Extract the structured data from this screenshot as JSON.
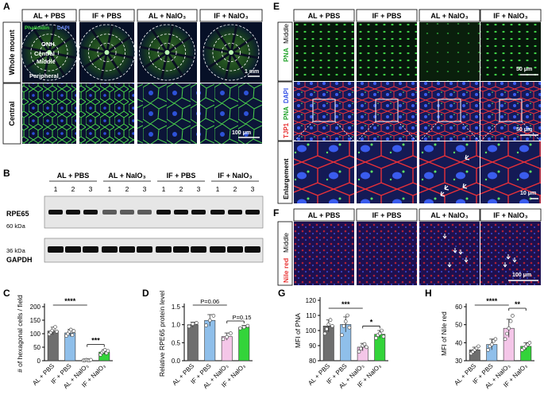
{
  "panels": {
    "A": {
      "letter": "A",
      "groups": [
        "AL + PBS",
        "IF + PBS",
        "AL + NaIO₃",
        "IF + NaIO₃"
      ],
      "row_labels": [
        "Whole mount",
        "Central"
      ],
      "stain_legend": {
        "phalloidin": "Phalloidin",
        "dapi": "DAPI"
      },
      "regions": [
        "ONH",
        "Central",
        "Middle",
        "Peripheral"
      ],
      "scalebar_top": "1 mm",
      "scalebar_bottom": "100 μm"
    },
    "B": {
      "letter": "B",
      "groups": [
        "AL + PBS",
        "AL + NaIO₃",
        "IF + PBS",
        "IF + NaIO₃"
      ],
      "lanes": [
        "1",
        "2",
        "3",
        "1",
        "2",
        "3",
        "1",
        "2",
        "3",
        "1",
        "2",
        "3"
      ],
      "bands": [
        "RPE65",
        "GAPDH"
      ],
      "markers": [
        "60 kDa",
        "36 kDa"
      ]
    },
    "C": {
      "letter": "C",
      "sig": [
        "****",
        "***"
      ]
    },
    "D": {
      "letter": "D",
      "sig": [
        "P=0.06",
        "P=0.15"
      ]
    },
    "E": {
      "letter": "E",
      "groups": [
        "AL + PBS",
        "IF + PBS",
        "AL + NaIO₃",
        "IF + NaIO₃"
      ],
      "row1_label": {
        "stain": "PNA",
        "region": "Middle"
      },
      "row2_label": {
        "a": "TJP1",
        "b": "PNA",
        "c": "DAPI"
      },
      "row3_label": "Enlargement",
      "scalebars": [
        "50 μm",
        "50 μm",
        "10 μm"
      ]
    },
    "F": {
      "letter": "F",
      "groups": [
        "AL + PBS",
        "IF + PBS",
        "AL + NaIO₃",
        "IF + NaIO₃"
      ],
      "row_label": {
        "stain": "Nile red",
        "region": "Middle"
      },
      "scalebar": "100 μm"
    },
    "G": {
      "letter": "G",
      "sig": [
        "***",
        "*"
      ]
    },
    "H": {
      "letter": "H",
      "sig": [
        "****",
        "**"
      ]
    }
  },
  "chart_data": [
    {
      "id": "C",
      "type": "bar",
      "categories": [
        "AL + PBS",
        "IF + PBS",
        "AL + NaIO₃",
        "IF + NaIO₃"
      ],
      "values": [
        110,
        103,
        2,
        32
      ],
      "errors": [
        14,
        13,
        1,
        9
      ],
      "points": [
        [
          98,
          105,
          112,
          120,
          125,
          108
        ],
        [
          92,
          100,
          108,
          115,
          95,
          110
        ],
        [
          1,
          2,
          3,
          2,
          1,
          3
        ],
        [
          22,
          30,
          35,
          40,
          28,
          36
        ]
      ],
      "colors": [
        "#6e6e6e",
        "#8fbfea",
        "#f4c6e8",
        "#33d43a"
      ],
      "ylabel": "# of hexagonal cells / field",
      "ylim": [
        0,
        200
      ],
      "yticks": [
        0,
        50,
        100,
        150,
        200
      ],
      "comparisons": [
        {
          "from": 0,
          "to": 2,
          "label": "****"
        },
        {
          "from": 2,
          "to": 3,
          "label": "***"
        }
      ]
    },
    {
      "id": "D",
      "type": "bar",
      "categories": [
        "AL + PBS",
        "IF + PBS",
        "AL + NaIO₃",
        "IF + NaIO₃"
      ],
      "values": [
        1.0,
        1.12,
        0.67,
        0.93
      ],
      "errors": [
        0.07,
        0.16,
        0.1,
        0.05
      ],
      "points": [
        [
          0.95,
          1.02,
          1.05
        ],
        [
          0.98,
          1.12,
          1.25
        ],
        [
          0.6,
          0.66,
          0.76
        ],
        [
          0.9,
          0.93,
          0.97
        ]
      ],
      "colors": [
        "#6e6e6e",
        "#8fbfea",
        "#f4c6e8",
        "#33d43a"
      ],
      "ylabel": "Relative RPE65 protein level",
      "ylim": [
        0,
        1.5
      ],
      "yticks": [
        0.0,
        0.5,
        1.0,
        1.5
      ],
      "comparisons": [
        {
          "from": 0,
          "to": 2,
          "label": "P=0.06"
        },
        {
          "from": 2,
          "to": 3,
          "label": "P=0.15"
        }
      ]
    },
    {
      "id": "G",
      "type": "bar",
      "categories": [
        "AL + PBS",
        "IF + PBS",
        "AL + NaIO₃",
        "IF + NaIO₃"
      ],
      "values": [
        103,
        104,
        89,
        97.5
      ],
      "errors": [
        4,
        5,
        2.5,
        2.5
      ],
      "points": [
        [
          98,
          101,
          104,
          107,
          103
        ],
        [
          97,
          103,
          106,
          110,
          102
        ],
        [
          86,
          88,
          90,
          91,
          89
        ],
        [
          95,
          97,
          98,
          100,
          96
        ]
      ],
      "colors": [
        "#6e6e6e",
        "#8fbfea",
        "#f4c6e8",
        "#33d43a"
      ],
      "ylabel": "MFI of PNA",
      "ylim": [
        80,
        120
      ],
      "yticks": [
        80,
        90,
        100,
        110,
        120
      ],
      "comparisons": [
        {
          "from": 0,
          "to": 2,
          "label": "***"
        },
        {
          "from": 2,
          "to": 3,
          "label": "*"
        }
      ]
    },
    {
      "id": "H",
      "type": "bar",
      "categories": [
        "AL + PBS",
        "IF + PBS",
        "AL + NaIO₃",
        "IF + NaIO₃"
      ],
      "values": [
        36,
        39,
        48,
        38
      ],
      "errors": [
        1.5,
        3,
        5,
        2
      ],
      "points": [
        [
          34,
          35,
          36,
          37,
          38
        ],
        [
          36,
          38,
          39,
          41,
          42
        ],
        [
          42,
          45,
          48,
          52,
          55
        ],
        [
          36,
          37,
          38,
          39,
          40
        ]
      ],
      "colors": [
        "#6e6e6e",
        "#8fbfea",
        "#f4c6e8",
        "#33d43a"
      ],
      "ylabel": "MFI of Nile red",
      "ylim": [
        30,
        60
      ],
      "yticks": [
        30,
        40,
        50,
        60
      ],
      "comparisons": [
        {
          "from": 0,
          "to": 2,
          "label": "****"
        },
        {
          "from": 2,
          "to": 3,
          "label": "**"
        }
      ]
    }
  ],
  "colors": {
    "phalloidin": "#3fdc3f",
    "dapi": "#4a73ff",
    "tjp1": "#ff3030",
    "nile": "#ff3a3a"
  }
}
